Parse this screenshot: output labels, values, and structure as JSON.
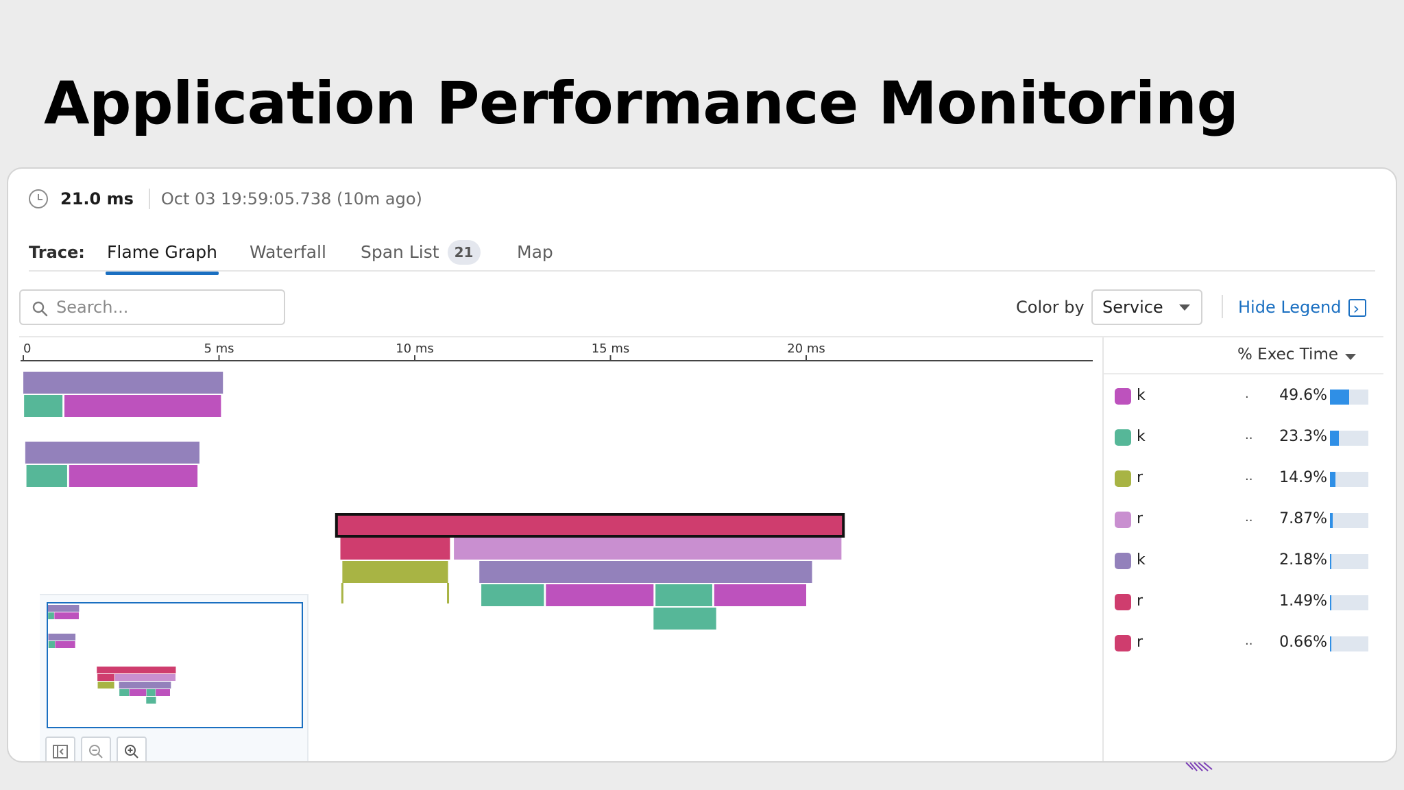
{
  "slide": {
    "title": "Application Performance Monitoring"
  },
  "trace_meta": {
    "duration": "21.0 ms",
    "timestamp": "Oct 03 19:59:05.738 (10m ago)"
  },
  "tabs": {
    "label": "Trace:",
    "items": [
      {
        "label": "Flame Graph",
        "active": true
      },
      {
        "label": "Waterfall",
        "active": false
      },
      {
        "label": "Span List",
        "badge": "21",
        "active": false
      },
      {
        "label": "Map",
        "active": false
      }
    ]
  },
  "toolbar": {
    "search_placeholder": "Search...",
    "color_by_label": "Color by",
    "color_by_value": "Service",
    "hide_legend_label": "Hide Legend"
  },
  "axis": {
    "ticks": [
      {
        "label": "0",
        "ms": 0
      },
      {
        "label": "5 ms",
        "ms": 5
      },
      {
        "label": "10 ms",
        "ms": 10
      },
      {
        "label": "15 ms",
        "ms": 15
      },
      {
        "label": "20 ms",
        "ms": 20
      }
    ]
  },
  "colors": {
    "purple": "#9381bb",
    "magenta": "#bd52bd",
    "teal": "#56b798",
    "olive": "#a8b444",
    "pink": "#c98fd0",
    "crimson": "#cf3d6e",
    "accent": "#1a6fc1"
  },
  "spans": [
    {
      "start": 0.0,
      "end": 5.1,
      "depth": 0,
      "color": "purple",
      "group": 0
    },
    {
      "start": 0.02,
      "end": 1.0,
      "depth": 1,
      "color": "teal",
      "group": 0
    },
    {
      "start": 1.05,
      "end": 5.05,
      "depth": 1,
      "color": "magenta",
      "group": 0
    },
    {
      "start": 0.05,
      "end": 4.5,
      "depth": 0,
      "color": "purple",
      "group": 1
    },
    {
      "start": 0.08,
      "end": 1.12,
      "depth": 1,
      "color": "teal",
      "group": 1
    },
    {
      "start": 1.17,
      "end": 4.45,
      "depth": 1,
      "color": "magenta",
      "group": 1
    },
    {
      "start": 8.0,
      "end": 20.95,
      "depth": 0,
      "color": "crimson",
      "group": 2,
      "selected": true
    },
    {
      "start": 8.1,
      "end": 10.9,
      "depth": 1,
      "color": "crimson",
      "group": 2
    },
    {
      "start": 11.0,
      "end": 20.9,
      "depth": 1,
      "color": "pink",
      "group": 2
    },
    {
      "start": 8.15,
      "end": 10.85,
      "depth": 2,
      "color": "olive",
      "group": 2
    },
    {
      "start": 11.65,
      "end": 20.15,
      "depth": 2,
      "color": "purple",
      "group": 2
    },
    {
      "start": 11.7,
      "end": 13.3,
      "depth": 3,
      "color": "teal",
      "group": 2
    },
    {
      "start": 13.35,
      "end": 16.1,
      "depth": 3,
      "color": "magenta",
      "group": 2
    },
    {
      "start": 16.15,
      "end": 17.6,
      "depth": 3,
      "color": "teal",
      "group": 2
    },
    {
      "start": 17.65,
      "end": 20.0,
      "depth": 3,
      "color": "magenta",
      "group": 2
    },
    {
      "start": 16.1,
      "end": 17.7,
      "depth": 4,
      "color": "teal",
      "group": 2
    }
  ],
  "legend": {
    "header": "% Exec Time",
    "items": [
      {
        "name": "k",
        "dots": ".",
        "pct": "49.6%",
        "fraction": 0.496,
        "color": "magenta"
      },
      {
        "name": "k",
        "dots": "..",
        "pct": "23.3%",
        "fraction": 0.233,
        "color": "teal"
      },
      {
        "name": "r",
        "dots": "..",
        "pct": "14.9%",
        "fraction": 0.149,
        "color": "olive"
      },
      {
        "name": "r",
        "dots": "..",
        "pct": "7.87%",
        "fraction": 0.0787,
        "color": "pink"
      },
      {
        "name": "k",
        "dots": "",
        "pct": "2.18%",
        "fraction": 0.0218,
        "color": "purple"
      },
      {
        "name": "r",
        "dots": "",
        "pct": "1.49%",
        "fraction": 0.0149,
        "color": "crimson"
      },
      {
        "name": "r",
        "dots": "..",
        "pct": "0.66%",
        "fraction": 0.0066,
        "color": "crimson"
      }
    ]
  },
  "minimap": {
    "buttons": [
      "collapse-icon",
      "zoom-out-icon",
      "zoom-in-icon"
    ]
  }
}
